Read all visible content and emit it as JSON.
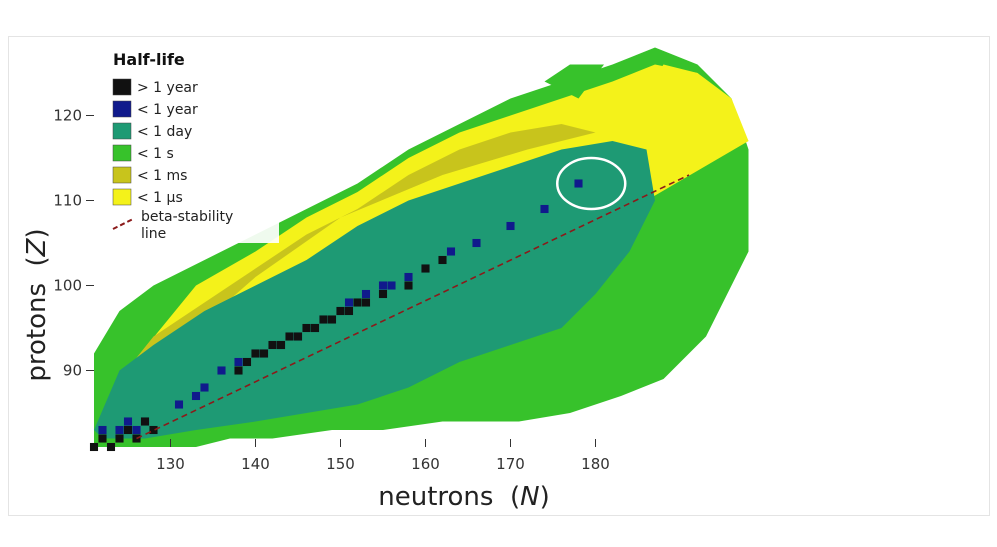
{
  "chart_data": {
    "type": "heatmap",
    "title": "",
    "xlabel": "neutrons",
    "xlabel_var": "N",
    "ylabel": "protons",
    "ylabel_var": "Z",
    "x_ticks": [
      "130",
      "140",
      "150",
      "160",
      "170",
      "180"
    ],
    "y_ticks": [
      "90",
      "100",
      "110",
      "120"
    ],
    "xlim": [
      121,
      198
    ],
    "ylim": [
      81,
      128
    ],
    "grid": false,
    "legend": {
      "title": "Half-life",
      "placement": "top-left",
      "items": [
        {
          "label": "> 1 year",
          "color": "#111111"
        },
        {
          "label": "< 1 year",
          "color": "#101a8c"
        },
        {
          "label": "< 1 day",
          "color": "#1e9a74"
        },
        {
          "label": "< 1 s",
          "color": "#37c22b"
        },
        {
          "label": "< 1 ms",
          "color": "#c8c41c"
        },
        {
          "label": "< 1 μs",
          "color": "#f4f21a"
        }
      ],
      "line_label": "beta-stability line"
    },
    "colors": {
      "gt_1_year": "#111111",
      "lt_1_year": "#101a8c",
      "lt_1_day": "#1e9a74",
      "lt_1_s": "#37c22b",
      "lt_1_ms": "#c8c41c",
      "lt_1_us": "#f4f21a",
      "stability_line": "#8b1a1a"
    },
    "beta_stability_line": {
      "x": [
        126,
        191
      ],
      "y": [
        82,
        113
      ]
    },
    "highlight_region": {
      "n_center": 179.5,
      "z_center": 112,
      "n_radius": 4,
      "z_radius": 3
    },
    "regions": {
      "outer_boundary": {
        "n": [
          121,
          121,
          124,
          128,
          134,
          140,
          146,
          152,
          158,
          164,
          170,
          176,
          182,
          187,
          192,
          196,
          198,
          198,
          193,
          188,
          183,
          177,
          171,
          162,
          155,
          149,
          142,
          137,
          133,
          128,
          124
        ],
        "z": [
          81,
          92,
          97,
          100,
          103,
          106,
          109,
          112,
          116,
          119,
          122,
          124,
          126,
          128,
          126,
          122,
          116,
          104,
          94,
          89,
          87,
          85,
          84,
          84,
          83,
          83,
          82,
          82,
          81,
          81,
          81
        ]
      },
      "yellow_upper": {
        "n": [
          133,
          140,
          146,
          152,
          158,
          164,
          170,
          176,
          182,
          187,
          192,
          196,
          198,
          186,
          175,
          162,
          150,
          140,
          133,
          127,
          124
        ],
        "z": [
          100,
          104,
          108,
          111,
          115,
          118,
          120,
          122,
          124,
          126,
          125,
          121,
          117,
          110,
          108,
          108,
          103,
          96,
          91,
          88,
          89
        ]
      },
      "yellow_lower": {
        "n": [
          198,
          196,
          192,
          188,
          184,
          180
        ],
        "z": [
          117,
          122,
          125,
          126,
          120,
          108
        ]
      },
      "ms_band": {
        "n": [
          124,
          128,
          134,
          140,
          146,
          152,
          158,
          164,
          170,
          176,
          180,
          172,
          162,
          150,
          140,
          132,
          127
        ],
        "z": [
          89,
          94,
          98,
          102,
          106,
          109,
          113,
          116,
          118,
          119,
          118,
          116,
          113,
          108,
          101,
          94,
          89
        ]
      },
      "day_region": {
        "n": [
          121,
          124,
          128,
          134,
          140,
          146,
          152,
          158,
          164,
          170,
          176,
          182,
          186,
          187,
          184,
          180,
          176,
          170,
          164,
          158,
          152,
          146,
          140,
          133,
          127,
          122
        ],
        "z": [
          83,
          90,
          93,
          97,
          100,
          103,
          107,
          110,
          112,
          114,
          116,
          117,
          116,
          110,
          104,
          99,
          95,
          93,
          91,
          88,
          86,
          85,
          84,
          83,
          82,
          82
        ]
      },
      "green_tongue": {
        "n": [
          174,
          177,
          181,
          178
        ],
        "z": [
          124,
          126,
          126,
          122
        ]
      },
      "year_chain": {
        "n": [
          122,
          124,
          125,
          126,
          127,
          131,
          133,
          134,
          136,
          138,
          140,
          141,
          143,
          145,
          147,
          148,
          150,
          151,
          153,
          155,
          156,
          158,
          160,
          163,
          166,
          170,
          174,
          178
        ],
        "z": [
          83,
          83,
          84,
          83,
          84,
          86,
          87,
          88,
          90,
          91,
          92,
          92,
          93,
          94,
          95,
          96,
          97,
          98,
          99,
          100,
          100,
          101,
          102,
          104,
          105,
          107,
          109,
          112
        ]
      },
      "black_chain": {
        "n": [
          121,
          122,
          123,
          124,
          125,
          126,
          127,
          128,
          138,
          139,
          140,
          141,
          142,
          143,
          144,
          145,
          146,
          147,
          148,
          149,
          150,
          151,
          152,
          153,
          155,
          158,
          160,
          162
        ],
        "z": [
          81,
          82,
          81,
          82,
          83,
          82,
          84,
          83,
          90,
          91,
          92,
          92,
          93,
          93,
          94,
          94,
          95,
          95,
          96,
          96,
          97,
          97,
          98,
          98,
          99,
          100,
          102,
          103
        ]
      }
    }
  }
}
